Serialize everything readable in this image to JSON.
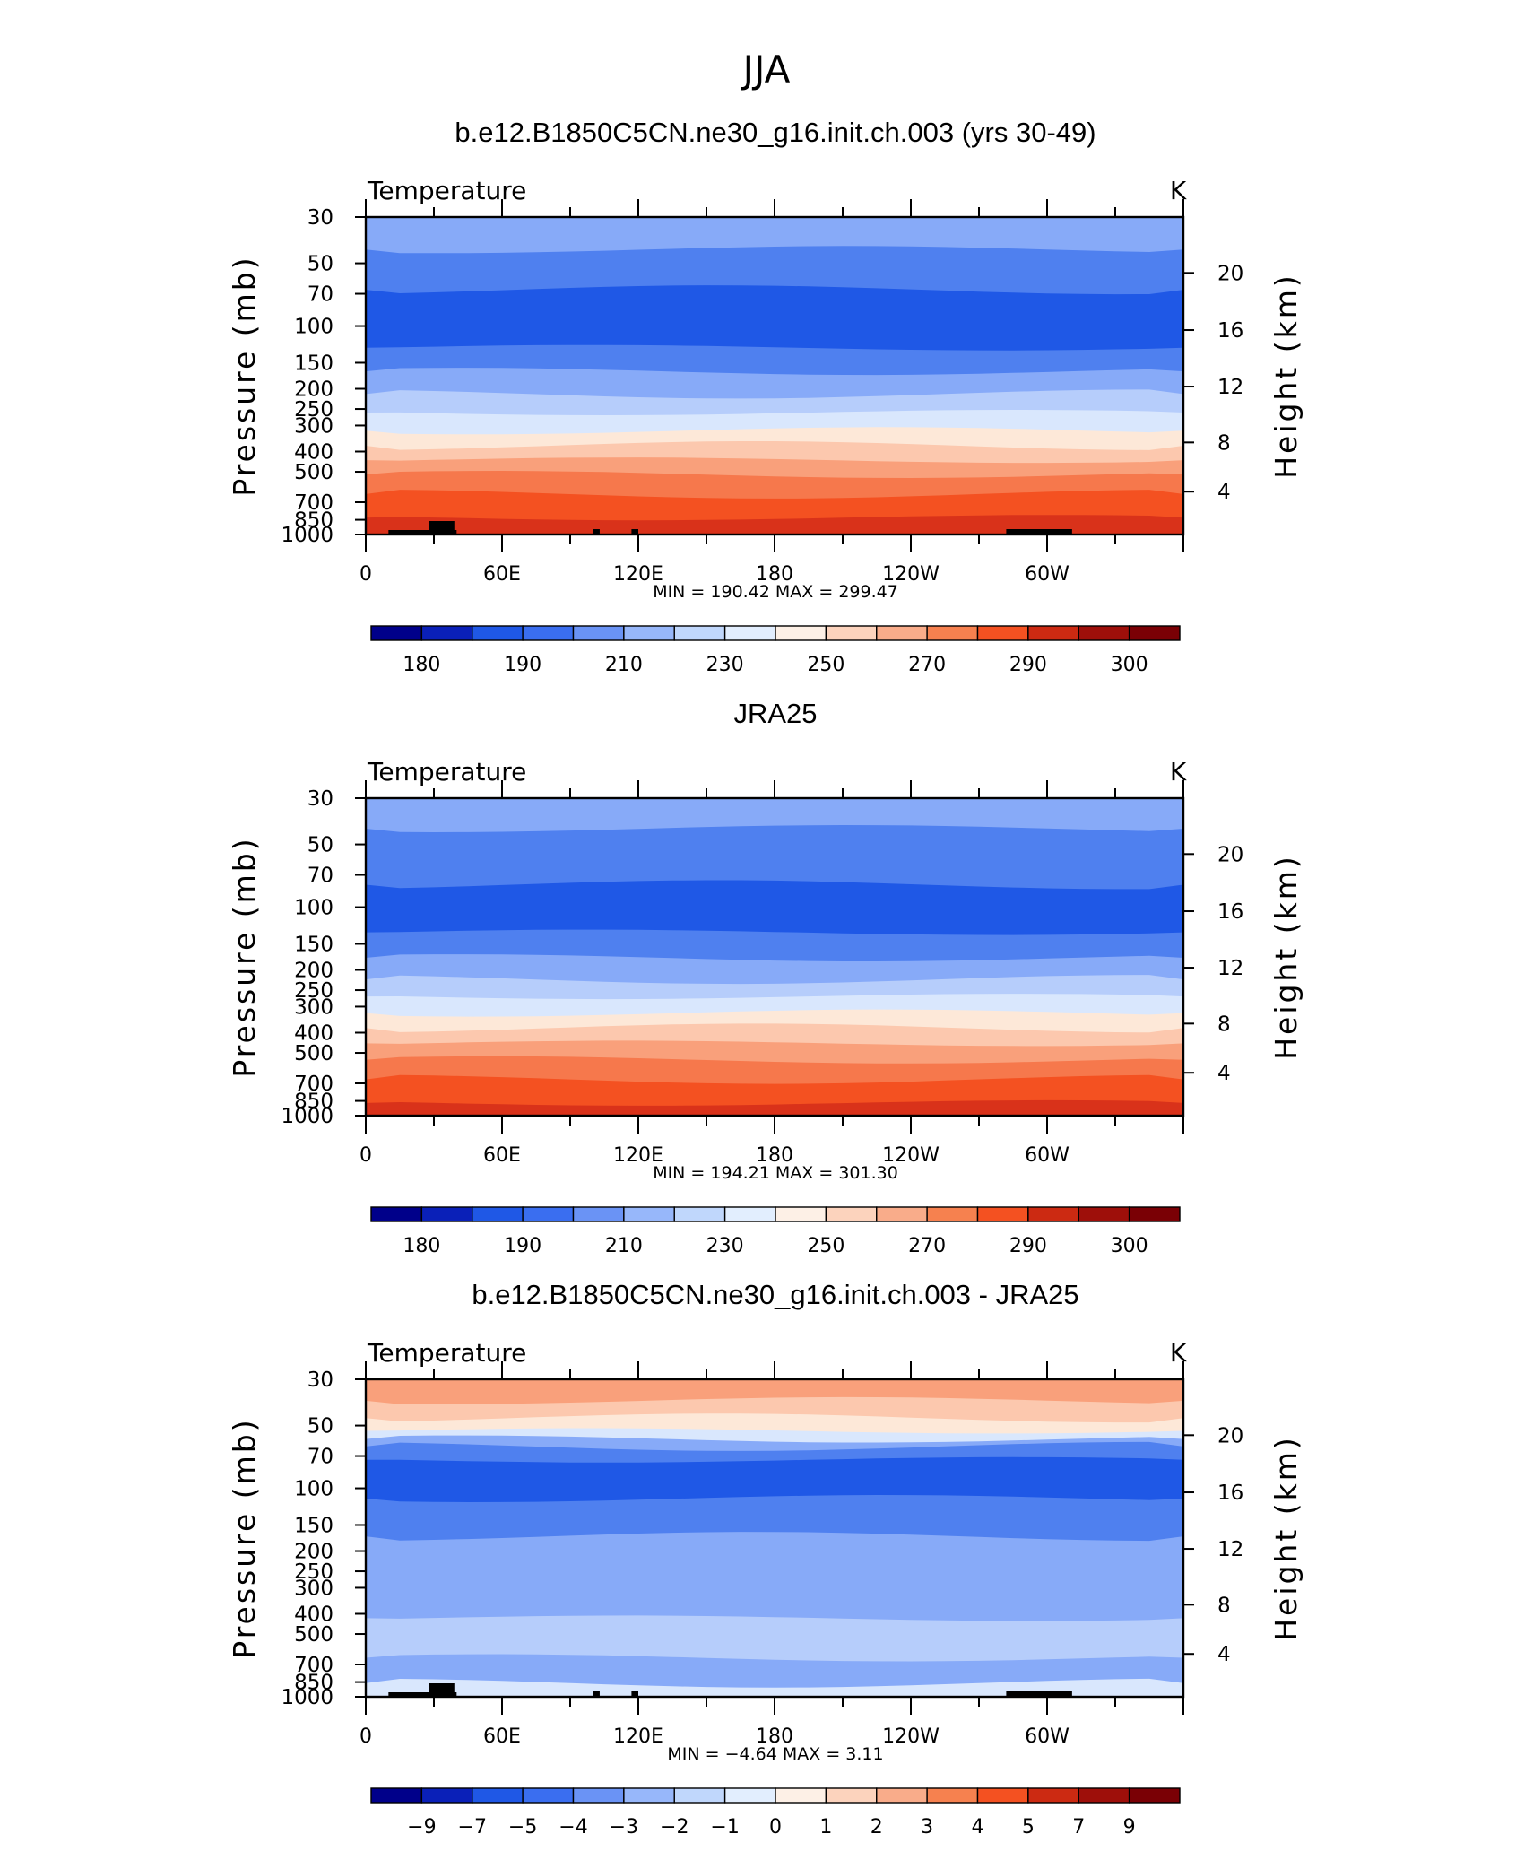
{
  "figure": {
    "title": "JJA"
  },
  "chart_data": [
    {
      "type": "heatmap",
      "panel_title": "b.e12.B1850C5CN.ne30_g16.init.ch.003 (yrs 30-49)",
      "left_label": "Temperature",
      "right_label": "K",
      "ylabel": "Pressure (mb)",
      "ylabel_right": "Height (km)",
      "x_ticks": [
        "0",
        "60E",
        "120E",
        "180",
        "120W",
        "60W"
      ],
      "x_range": [
        0,
        360
      ],
      "y_ticks": [
        "30",
        "50",
        "70",
        "100",
        "150",
        "200",
        "250",
        "300",
        "400",
        "500",
        "700",
        "850",
        "1000"
      ],
      "y_range_mb": [
        30,
        1000
      ],
      "y_scale": "log",
      "height_ticks": [
        "20",
        "16",
        "12",
        "8",
        "4"
      ],
      "stats": "MIN =  190.42   MAX =  299.47",
      "min": 190.42,
      "max": 299.47,
      "colorbar_labels": [
        "180",
        "190",
        "210",
        "230",
        "250",
        "270",
        "290",
        "300"
      ],
      "bands": [
        {
          "from_mb": 30,
          "to_mb": 43,
          "color": "#87aaf8"
        },
        {
          "from_mb": 43,
          "to_mb": 67,
          "color": "#4f80ef"
        },
        {
          "from_mb": 67,
          "to_mb": 127,
          "color": "#1f58e6"
        },
        {
          "from_mb": 127,
          "to_mb": 165,
          "color": "#4f80ef"
        },
        {
          "from_mb": 165,
          "to_mb": 212,
          "color": "#87aaf8"
        },
        {
          "from_mb": 212,
          "to_mb": 260,
          "color": "#b6cdfb"
        },
        {
          "from_mb": 260,
          "to_mb": 318,
          "color": "#d9e7fd"
        },
        {
          "from_mb": 318,
          "to_mb": 375,
          "color": "#fde8d8"
        },
        {
          "from_mb": 375,
          "to_mb": 440,
          "color": "#fcc8ae"
        },
        {
          "from_mb": 440,
          "to_mb": 515,
          "color": "#f9a07b"
        },
        {
          "from_mb": 515,
          "to_mb": 640,
          "color": "#f6784c"
        },
        {
          "from_mb": 640,
          "to_mb": 830,
          "color": "#f45121"
        },
        {
          "from_mb": 830,
          "to_mb": 1000,
          "color": "#d9321a"
        }
      ]
    },
    {
      "type": "heatmap",
      "panel_title": "JRA25",
      "left_label": "Temperature",
      "right_label": "K",
      "ylabel": "Pressure (mb)",
      "ylabel_right": "Height (km)",
      "x_ticks": [
        "0",
        "60E",
        "120E",
        "180",
        "120W",
        "60W"
      ],
      "x_range": [
        0,
        360
      ],
      "y_ticks": [
        "30",
        "50",
        "70",
        "100",
        "150",
        "200",
        "250",
        "300",
        "400",
        "500",
        "700",
        "850",
        "1000"
      ],
      "y_range_mb": [
        30,
        1000
      ],
      "y_scale": "log",
      "height_ticks": [
        "20",
        "16",
        "12",
        "8",
        "4"
      ],
      "stats": "MIN =  194.21   MAX =  301.30",
      "min": 194.21,
      "max": 301.3,
      "colorbar_labels": [
        "180",
        "190",
        "210",
        "230",
        "250",
        "270",
        "290",
        "300"
      ],
      "bands": [
        {
          "from_mb": 30,
          "to_mb": 42,
          "color": "#87aaf8"
        },
        {
          "from_mb": 42,
          "to_mb": 78,
          "color": "#4f80ef"
        },
        {
          "from_mb": 78,
          "to_mb": 132,
          "color": "#1f58e6"
        },
        {
          "from_mb": 132,
          "to_mb": 175,
          "color": "#4f80ef"
        },
        {
          "from_mb": 175,
          "to_mb": 222,
          "color": "#87aaf8"
        },
        {
          "from_mb": 222,
          "to_mb": 268,
          "color": "#b6cdfb"
        },
        {
          "from_mb": 268,
          "to_mb": 322,
          "color": "#d9e7fd"
        },
        {
          "from_mb": 322,
          "to_mb": 380,
          "color": "#fde8d8"
        },
        {
          "from_mb": 380,
          "to_mb": 450,
          "color": "#fcc8ae"
        },
        {
          "from_mb": 450,
          "to_mb": 540,
          "color": "#f9a07b"
        },
        {
          "from_mb": 540,
          "to_mb": 670,
          "color": "#f6784c"
        },
        {
          "from_mb": 670,
          "to_mb": 870,
          "color": "#f45121"
        },
        {
          "from_mb": 870,
          "to_mb": 1000,
          "color": "#d9321a"
        }
      ]
    },
    {
      "type": "heatmap",
      "panel_title": "b.e12.B1850C5CN.ne30_g16.init.ch.003 - JRA25",
      "left_label": "Temperature",
      "right_label": "K",
      "ylabel": "Pressure (mb)",
      "ylabel_right": "Height (km)",
      "x_ticks": [
        "0",
        "60E",
        "120E",
        "180",
        "120W",
        "60W"
      ],
      "x_range": [
        0,
        360
      ],
      "y_ticks": [
        "30",
        "50",
        "70",
        "100",
        "150",
        "200",
        "250",
        "300",
        "400",
        "500",
        "700",
        "850",
        "1000"
      ],
      "y_range_mb": [
        30,
        1000
      ],
      "y_scale": "log",
      "height_ticks": [
        "20",
        "16",
        "12",
        "8",
        "4"
      ],
      "stats": "MIN =   −4.64   MAX =     3.11",
      "min": -4.64,
      "max": 3.11,
      "colorbar_labels": [
        "−9",
        "−7",
        "−5",
        "−4",
        "−3",
        "−2",
        "−1",
        "0",
        "1",
        "2",
        "3",
        "4",
        "5",
        "7",
        "9"
      ],
      "bands": [
        {
          "from_mb": 30,
          "to_mb": 38,
          "color": "#f9a07b"
        },
        {
          "from_mb": 38,
          "to_mb": 46,
          "color": "#fcc8ae"
        },
        {
          "from_mb": 46,
          "to_mb": 53,
          "color": "#fde8d8"
        },
        {
          "from_mb": 53,
          "to_mb": 58,
          "color": "#d9e7fd"
        },
        {
          "from_mb": 58,
          "to_mb": 63,
          "color": "#87aaf8"
        },
        {
          "from_mb": 63,
          "to_mb": 73,
          "color": "#4f80ef"
        },
        {
          "from_mb": 73,
          "to_mb": 112,
          "color": "#1f58e6"
        },
        {
          "from_mb": 112,
          "to_mb": 170,
          "color": "#4f80ef"
        },
        {
          "from_mb": 170,
          "to_mb": 420,
          "color": "#87aaf8"
        },
        {
          "from_mb": 420,
          "to_mb": 650,
          "color": "#b6cdfb"
        },
        {
          "from_mb": 650,
          "to_mb": 860,
          "color": "#87aaf8"
        },
        {
          "from_mb": 860,
          "to_mb": 1000,
          "color": "#d9e7fd"
        }
      ]
    }
  ],
  "colorbar_colors": [
    "#00008a",
    "#0a20b8",
    "#1f58e6",
    "#3a6ef0",
    "#6a93f5",
    "#97b7fa",
    "#c0d7fc",
    "#e2eefe",
    "#fdf0e6",
    "#fcd3bd",
    "#f9ac8a",
    "#f6814f",
    "#f45121",
    "#cc2a12",
    "#9e0f0a",
    "#7a0005"
  ],
  "land_mask_color": "#000000"
}
